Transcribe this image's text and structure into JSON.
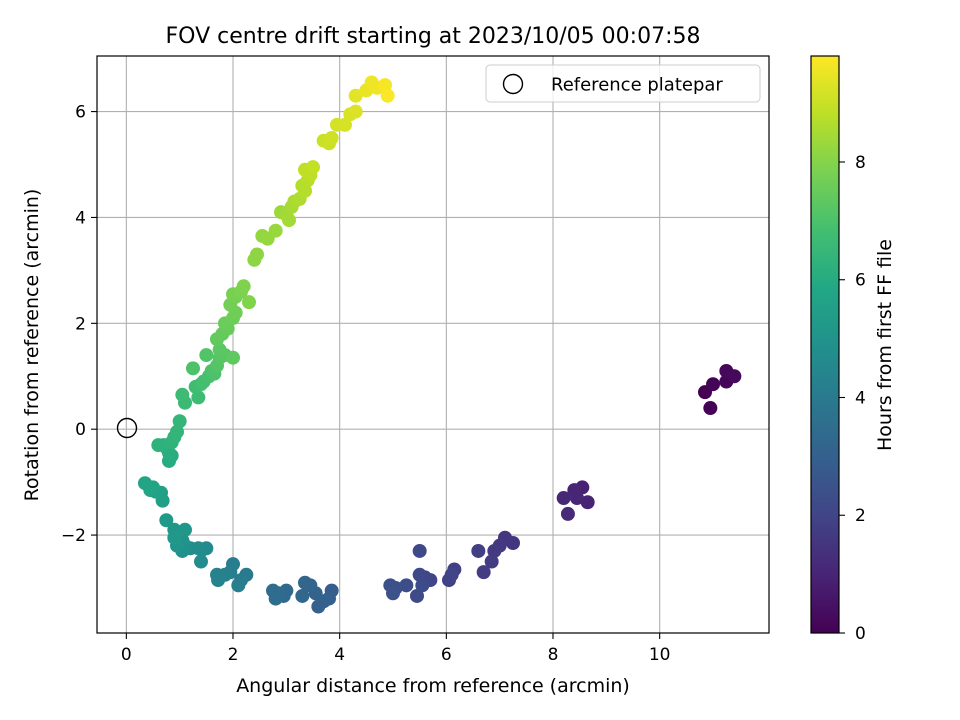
{
  "chart_data": {
    "type": "scatter",
    "title": "FOV centre drift starting at 2023/10/05 00:07:58",
    "xlabel": "Angular distance from reference (arcmin)",
    "ylabel": "Rotation from reference (arcmin)",
    "xlim": [
      -0.55,
      12.05
    ],
    "ylim": [
      -3.85,
      7.05
    ],
    "xticks": [
      0,
      2,
      4,
      6,
      8,
      10
    ],
    "yticks": [
      -2,
      0,
      2,
      4,
      6
    ],
    "ytick_labels": [
      "−2",
      "0",
      "2",
      "4",
      "6"
    ],
    "grid": true,
    "legend": {
      "position": "top-right",
      "entries": [
        "Reference platepar"
      ]
    },
    "reference_point": {
      "x": 0,
      "y": 0
    },
    "colorbar": {
      "label": "Hours from first FF file",
      "range": [
        0,
        9.8
      ],
      "ticks": [
        0,
        2,
        4,
        6,
        8
      ],
      "colormap": "viridis"
    },
    "series": [
      {
        "name": "Hours from first FF file",
        "points": [
          {
            "x": 10.85,
            "y": 0.7,
            "h": 0.0
          },
          {
            "x": 10.95,
            "y": 0.4,
            "h": 0.05
          },
          {
            "x": 11.0,
            "y": 0.85,
            "h": 0.1
          },
          {
            "x": 11.25,
            "y": 0.9,
            "h": 0.15
          },
          {
            "x": 11.25,
            "y": 1.1,
            "h": 0.2
          },
          {
            "x": 11.4,
            "y": 1.0,
            "h": 0.25
          },
          {
            "x": 8.55,
            "y": -1.1,
            "h": 0.9
          },
          {
            "x": 8.65,
            "y": -1.38,
            "h": 0.95
          },
          {
            "x": 8.4,
            "y": -1.15,
            "h": 1.0
          },
          {
            "x": 8.45,
            "y": -1.3,
            "h": 1.05
          },
          {
            "x": 8.2,
            "y": -1.3,
            "h": 1.1
          },
          {
            "x": 8.28,
            "y": -1.6,
            "h": 1.15
          },
          {
            "x": 7.25,
            "y": -2.15,
            "h": 1.5
          },
          {
            "x": 7.1,
            "y": -2.05,
            "h": 1.55
          },
          {
            "x": 7.0,
            "y": -2.2,
            "h": 1.6
          },
          {
            "x": 6.9,
            "y": -2.3,
            "h": 1.65
          },
          {
            "x": 6.85,
            "y": -2.5,
            "h": 1.7
          },
          {
            "x": 6.7,
            "y": -2.7,
            "h": 1.75
          },
          {
            "x": 6.6,
            "y": -2.3,
            "h": 1.8
          },
          {
            "x": 6.15,
            "y": -2.65,
            "h": 1.85
          },
          {
            "x": 6.05,
            "y": -2.85,
            "h": 1.9
          },
          {
            "x": 6.1,
            "y": -2.75,
            "h": 1.95
          },
          {
            "x": 5.7,
            "y": -2.85,
            "h": 2.0
          },
          {
            "x": 5.6,
            "y": -2.8,
            "h": 2.05
          },
          {
            "x": 5.5,
            "y": -2.75,
            "h": 2.1
          },
          {
            "x": 5.5,
            "y": -2.3,
            "h": 2.15
          },
          {
            "x": 5.45,
            "y": -3.15,
            "h": 2.2
          },
          {
            "x": 5.55,
            "y": -2.95,
            "h": 2.25
          },
          {
            "x": 5.25,
            "y": -2.95,
            "h": 2.3
          },
          {
            "x": 5.05,
            "y": -3.0,
            "h": 2.35
          },
          {
            "x": 4.95,
            "y": -2.95,
            "h": 2.4
          },
          {
            "x": 5.0,
            "y": -3.1,
            "h": 2.45
          },
          {
            "x": 3.85,
            "y": -3.05,
            "h": 2.9
          },
          {
            "x": 3.8,
            "y": -3.2,
            "h": 2.95
          },
          {
            "x": 3.7,
            "y": -3.25,
            "h": 3.0
          },
          {
            "x": 3.6,
            "y": -3.35,
            "h": 3.05
          },
          {
            "x": 3.55,
            "y": -3.1,
            "h": 3.1
          },
          {
            "x": 3.45,
            "y": -2.95,
            "h": 3.15
          },
          {
            "x": 3.35,
            "y": -2.9,
            "h": 3.2
          },
          {
            "x": 3.3,
            "y": -3.15,
            "h": 3.25
          },
          {
            "x": 3.0,
            "y": -3.05,
            "h": 3.3
          },
          {
            "x": 2.95,
            "y": -3.15,
            "h": 3.35
          },
          {
            "x": 2.85,
            "y": -3.1,
            "h": 3.4
          },
          {
            "x": 2.75,
            "y": -3.05,
            "h": 3.45
          },
          {
            "x": 2.8,
            "y": -3.2,
            "h": 3.5
          },
          {
            "x": 2.25,
            "y": -2.75,
            "h": 4.0
          },
          {
            "x": 2.15,
            "y": -2.85,
            "h": 4.05
          },
          {
            "x": 2.1,
            "y": -2.95,
            "h": 4.1
          },
          {
            "x": 2.0,
            "y": -2.55,
            "h": 4.15
          },
          {
            "x": 1.95,
            "y": -2.7,
            "h": 4.2
          },
          {
            "x": 1.85,
            "y": -2.75,
            "h": 4.25
          },
          {
            "x": 1.7,
            "y": -2.75,
            "h": 4.3
          },
          {
            "x": 1.72,
            "y": -2.85,
            "h": 4.35
          },
          {
            "x": 1.5,
            "y": -2.25,
            "h": 4.6
          },
          {
            "x": 1.42,
            "y": -2.28,
            "h": 4.65
          },
          {
            "x": 1.35,
            "y": -2.25,
            "h": 4.7
          },
          {
            "x": 1.4,
            "y": -2.5,
            "h": 4.75
          },
          {
            "x": 1.2,
            "y": -2.25,
            "h": 4.8
          },
          {
            "x": 1.1,
            "y": -2.2,
            "h": 4.85
          },
          {
            "x": 1.05,
            "y": -2.3,
            "h": 4.9
          },
          {
            "x": 1.05,
            "y": -2.1,
            "h": 4.95
          },
          {
            "x": 1.0,
            "y": -2.0,
            "h": 5.0
          },
          {
            "x": 0.95,
            "y": -2.2,
            "h": 5.05
          },
          {
            "x": 1.1,
            "y": -1.9,
            "h": 5.1
          },
          {
            "x": 0.9,
            "y": -1.9,
            "h": 5.15
          },
          {
            "x": 0.9,
            "y": -2.05,
            "h": 5.2
          },
          {
            "x": 0.75,
            "y": -1.72,
            "h": 5.25
          },
          {
            "x": 0.68,
            "y": -1.35,
            "h": 5.5
          },
          {
            "x": 0.65,
            "y": -1.2,
            "h": 5.55
          },
          {
            "x": 0.55,
            "y": -1.18,
            "h": 5.6
          },
          {
            "x": 0.5,
            "y": -1.1,
            "h": 5.65
          },
          {
            "x": 0.35,
            "y": -1.02,
            "h": 5.7
          },
          {
            "x": 0.45,
            "y": -1.15,
            "h": 5.75
          },
          {
            "x": 0.8,
            "y": -0.6,
            "h": 6.0
          },
          {
            "x": 0.85,
            "y": -0.5,
            "h": 6.05
          },
          {
            "x": 0.8,
            "y": -0.45,
            "h": 6.1
          },
          {
            "x": 0.75,
            "y": -0.35,
            "h": 6.15
          },
          {
            "x": 0.7,
            "y": -0.3,
            "h": 6.2
          },
          {
            "x": 0.6,
            "y": -0.3,
            "h": 6.25
          },
          {
            "x": 0.85,
            "y": -0.25,
            "h": 6.3
          },
          {
            "x": 0.9,
            "y": -0.15,
            "h": 6.35
          },
          {
            "x": 0.95,
            "y": -0.05,
            "h": 6.4
          },
          {
            "x": 1.0,
            "y": 0.15,
            "h": 6.45
          },
          {
            "x": 1.1,
            "y": 0.5,
            "h": 6.6
          },
          {
            "x": 1.05,
            "y": 0.65,
            "h": 6.65
          },
          {
            "x": 1.35,
            "y": 0.6,
            "h": 6.7
          },
          {
            "x": 1.3,
            "y": 0.8,
            "h": 6.75
          },
          {
            "x": 1.4,
            "y": 0.85,
            "h": 6.8
          },
          {
            "x": 1.45,
            "y": 0.9,
            "h": 6.85
          },
          {
            "x": 1.55,
            "y": 1.0,
            "h": 6.9
          },
          {
            "x": 1.6,
            "y": 1.1,
            "h": 6.95
          },
          {
            "x": 1.65,
            "y": 1.05,
            "h": 7.0
          },
          {
            "x": 1.25,
            "y": 1.15,
            "h": 7.05
          },
          {
            "x": 1.5,
            "y": 1.4,
            "h": 7.1
          },
          {
            "x": 1.7,
            "y": 1.2,
            "h": 7.15
          },
          {
            "x": 1.75,
            "y": 1.35,
            "h": 7.2
          },
          {
            "x": 1.85,
            "y": 1.4,
            "h": 7.25
          },
          {
            "x": 1.75,
            "y": 1.5,
            "h": 7.3
          },
          {
            "x": 2.0,
            "y": 1.35,
            "h": 7.35
          },
          {
            "x": 1.7,
            "y": 1.7,
            "h": 7.4
          },
          {
            "x": 1.8,
            "y": 1.8,
            "h": 7.45
          },
          {
            "x": 1.9,
            "y": 1.9,
            "h": 7.5
          },
          {
            "x": 1.85,
            "y": 2.0,
            "h": 7.55
          },
          {
            "x": 2.0,
            "y": 2.1,
            "h": 7.6
          },
          {
            "x": 2.05,
            "y": 2.2,
            "h": 7.65
          },
          {
            "x": 1.95,
            "y": 2.35,
            "h": 7.7
          },
          {
            "x": 2.05,
            "y": 2.5,
            "h": 7.75
          },
          {
            "x": 2.0,
            "y": 2.55,
            "h": 7.8
          },
          {
            "x": 2.15,
            "y": 2.6,
            "h": 7.85
          },
          {
            "x": 2.2,
            "y": 2.7,
            "h": 7.9
          },
          {
            "x": 2.3,
            "y": 2.4,
            "h": 7.95
          },
          {
            "x": 2.4,
            "y": 3.2,
            "h": 8.1
          },
          {
            "x": 2.45,
            "y": 3.3,
            "h": 8.15
          },
          {
            "x": 2.55,
            "y": 3.65,
            "h": 8.2
          },
          {
            "x": 2.65,
            "y": 3.6,
            "h": 8.25
          },
          {
            "x": 2.8,
            "y": 3.75,
            "h": 8.3
          },
          {
            "x": 2.9,
            "y": 4.1,
            "h": 8.35
          },
          {
            "x": 3.0,
            "y": 4.05,
            "h": 8.4
          },
          {
            "x": 3.05,
            "y": 3.95,
            "h": 8.45
          },
          {
            "x": 3.1,
            "y": 4.2,
            "h": 8.5
          },
          {
            "x": 3.15,
            "y": 4.3,
            "h": 8.55
          },
          {
            "x": 3.25,
            "y": 4.35,
            "h": 8.6
          },
          {
            "x": 3.3,
            "y": 4.6,
            "h": 8.65
          },
          {
            "x": 3.35,
            "y": 4.5,
            "h": 8.7
          },
          {
            "x": 3.4,
            "y": 4.7,
            "h": 8.75
          },
          {
            "x": 3.45,
            "y": 4.8,
            "h": 8.8
          },
          {
            "x": 3.35,
            "y": 4.9,
            "h": 8.85
          },
          {
            "x": 3.5,
            "y": 4.95,
            "h": 8.9
          },
          {
            "x": 3.7,
            "y": 5.45,
            "h": 9.0
          },
          {
            "x": 3.8,
            "y": 5.4,
            "h": 9.05
          },
          {
            "x": 3.85,
            "y": 5.5,
            "h": 9.1
          },
          {
            "x": 3.95,
            "y": 5.75,
            "h": 9.15
          },
          {
            "x": 4.1,
            "y": 5.75,
            "h": 9.2
          },
          {
            "x": 4.2,
            "y": 5.95,
            "h": 9.25
          },
          {
            "x": 4.3,
            "y": 6.0,
            "h": 9.3
          },
          {
            "x": 4.3,
            "y": 6.3,
            "h": 9.4
          },
          {
            "x": 4.5,
            "y": 6.4,
            "h": 9.5
          },
          {
            "x": 4.6,
            "y": 6.55,
            "h": 9.55
          },
          {
            "x": 4.7,
            "y": 6.45,
            "h": 9.6
          },
          {
            "x": 4.85,
            "y": 6.5,
            "h": 9.7
          },
          {
            "x": 4.9,
            "y": 6.3,
            "h": 9.75
          }
        ]
      }
    ]
  }
}
